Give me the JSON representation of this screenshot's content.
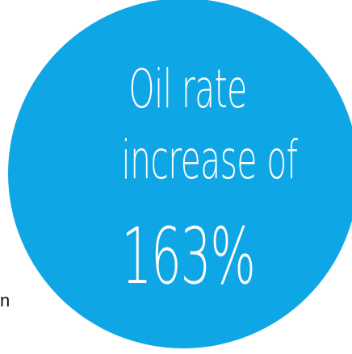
{
  "graphic": {
    "line1": "Oil rate",
    "line2": "increase of",
    "line3": "163%",
    "color": "#0fa6e6",
    "text_color": "#ffffff"
  },
  "edge_fragment": {
    "text": "n"
  }
}
